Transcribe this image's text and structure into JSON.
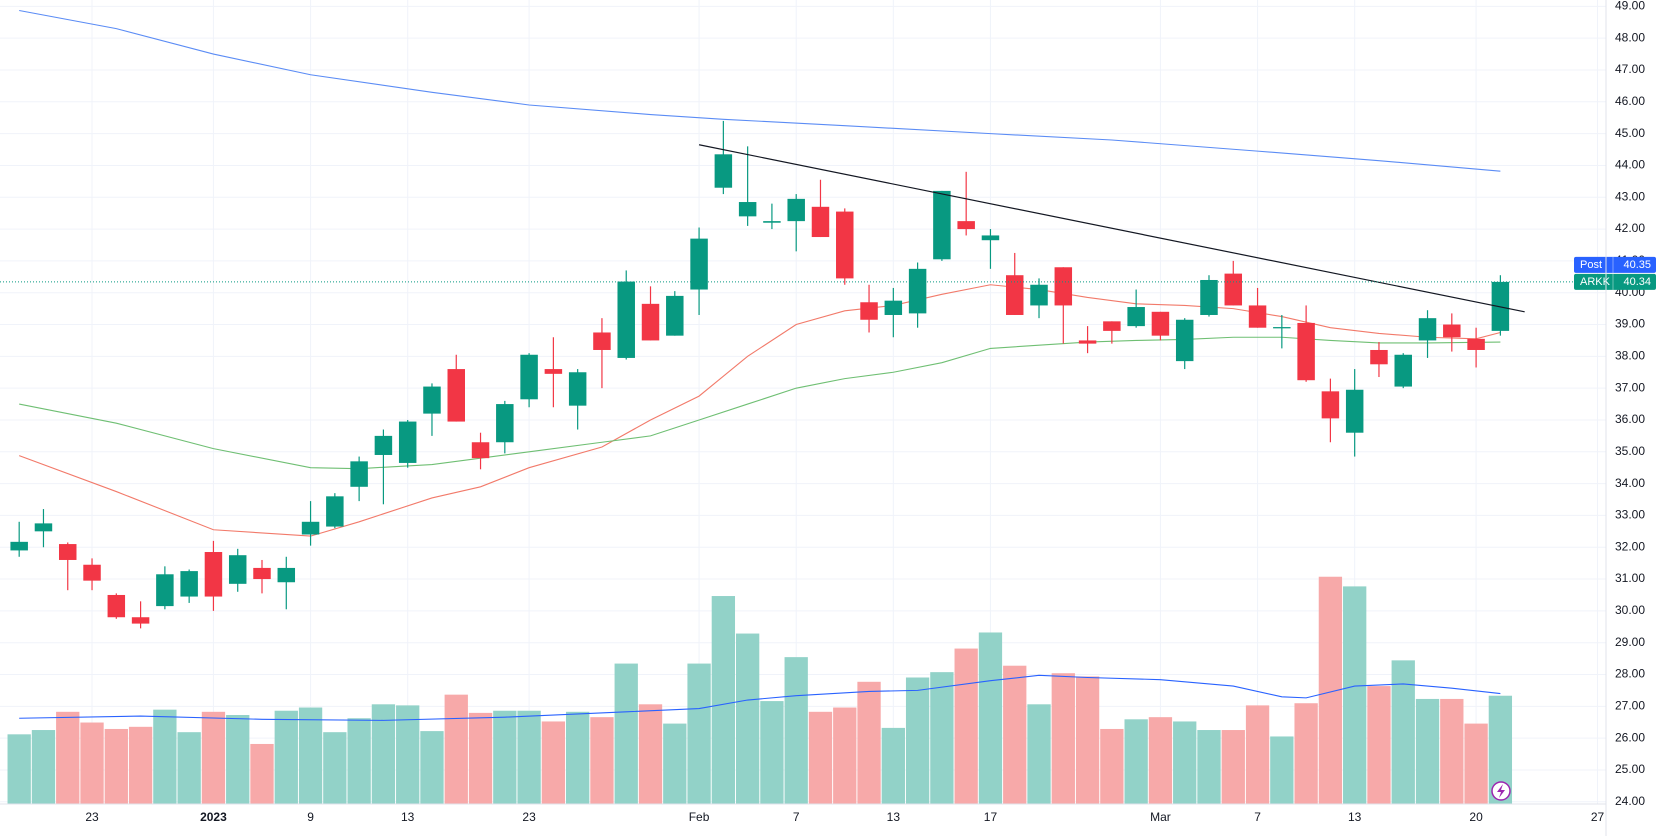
{
  "chart_data": {
    "type": "candlestick",
    "open": [
      31.9,
      32.5,
      32.1,
      31.45,
      30.5,
      29.8,
      30.15,
      30.45,
      31.85,
      30.85,
      31.35,
      30.9,
      32.4,
      32.65,
      33.9,
      34.9,
      34.65,
      36.2,
      37.6,
      35.3,
      35.3,
      36.65,
      37.6,
      36.45,
      38.75,
      37.95,
      39.65,
      38.65,
      40.1,
      43.3,
      42.4,
      42.2,
      42.25,
      42.7,
      42.55,
      39.7,
      39.3,
      39.35,
      41.05,
      42.25,
      41.65,
      40.55,
      39.6,
      40.8,
      38.5,
      39.1,
      38.95,
      39.4,
      37.85,
      39.3,
      40.6,
      39.6,
      38.88,
      39.05,
      36.9,
      35.6,
      38.2,
      37.05,
      38.5,
      39.0,
      38.55,
      38.8
    ],
    "high": [
      32.8,
      33.2,
      32.15,
      31.65,
      30.55,
      30.3,
      31.4,
      31.3,
      32.2,
      31.95,
      31.6,
      31.7,
      33.45,
      33.7,
      34.85,
      35.7,
      36.0,
      37.15,
      38.05,
      35.6,
      36.6,
      38.1,
      38.6,
      37.6,
      39.2,
      40.7,
      40.2,
      40.05,
      42.05,
      45.4,
      44.6,
      42.8,
      43.1,
      43.55,
      42.65,
      40.25,
      40.15,
      40.95,
      43.2,
      43.8,
      42.0,
      41.25,
      40.45,
      40.8,
      38.95,
      39.1,
      40.1,
      39.4,
      39.2,
      40.55,
      41.0,
      40.15,
      39.3,
      39.6,
      37.3,
      37.6,
      38.45,
      38.1,
      39.45,
      39.35,
      38.9,
      40.55
    ],
    "low": [
      31.7,
      32.0,
      30.65,
      30.65,
      29.75,
      29.45,
      30.05,
      30.25,
      30.0,
      30.6,
      30.55,
      30.05,
      32.05,
      32.6,
      33.45,
      33.35,
      34.5,
      35.5,
      35.95,
      34.45,
      34.95,
      36.4,
      36.4,
      35.7,
      37.0,
      37.9,
      38.5,
      38.65,
      39.3,
      43.1,
      42.1,
      42.0,
      41.3,
      41.75,
      40.25,
      38.75,
      38.6,
      38.9,
      41.0,
      41.8,
      40.75,
      39.3,
      39.2,
      38.4,
      38.1,
      38.4,
      38.9,
      38.5,
      37.6,
      39.25,
      39.6,
      38.9,
      38.25,
      37.2,
      35.3,
      34.85,
      37.35,
      37.0,
      37.95,
      38.15,
      37.65,
      38.65
    ],
    "close": [
      32.17,
      32.75,
      31.6,
      30.95,
      29.8,
      29.6,
      31.15,
      31.25,
      30.45,
      31.75,
      31.0,
      31.35,
      32.8,
      33.6,
      34.7,
      35.5,
      35.95,
      37.05,
      35.95,
      34.8,
      36.5,
      38.05,
      37.45,
      37.5,
      38.2,
      40.35,
      38.5,
      39.9,
      41.7,
      44.35,
      42.85,
      42.25,
      42.95,
      41.75,
      40.45,
      39.15,
      39.75,
      40.75,
      43.2,
      42.0,
      41.8,
      39.3,
      40.25,
      39.6,
      38.4,
      38.8,
      39.55,
      38.65,
      39.15,
      40.4,
      39.6,
      38.9,
      38.92,
      37.25,
      36.05,
      36.95,
      37.75,
      38.05,
      39.2,
      38.6,
      38.2,
      40.34
    ],
    "volume": [
      13,
      13.8,
      17.2,
      15.2,
      14,
      14.4,
      17.6,
      13.4,
      17.2,
      16.6,
      11.2,
      17.4,
      18,
      13.4,
      16,
      18.6,
      18.4,
      13.6,
      20.4,
      17,
      17.4,
      17.4,
      15.4,
      17.2,
      16.2,
      26.2,
      18.6,
      15,
      26.2,
      38.8,
      31.8,
      19.2,
      27.4,
      17.2,
      18,
      22.8,
      14.2,
      23.6,
      24.6,
      29,
      32,
      25.8,
      18.6,
      24.4,
      23.8,
      14,
      15.8,
      16.2,
      15.4,
      13.8,
      13.8,
      18.4,
      12.6,
      18.8,
      42.4,
      40.6,
      22,
      26.8,
      19.6,
      19.6,
      15,
      20.2
    ],
    "up_color": "#089981",
    "down_color": "#f23645",
    "volume_up_color": "#92d2c8",
    "volume_down_color": "#f7a9a9",
    "lines": [
      {
        "color": "#5b8cf5",
        "x": [
          0,
          4,
          8,
          12,
          17,
          21,
          26,
          29,
          34,
          40,
          45,
          51,
          56,
          61
        ],
        "values": [
          48.87,
          48.3,
          47.5,
          46.85,
          46.3,
          45.9,
          45.6,
          45.45,
          45.25,
          45.0,
          44.8,
          44.45,
          44.15,
          43.82
        ]
      },
      {
        "color": "#f27a6a",
        "x": [
          0,
          4,
          8,
          12,
          14,
          17,
          19,
          21,
          24,
          26,
          28,
          30,
          32,
          34,
          36,
          38,
          40,
          42,
          44,
          46,
          48,
          50,
          52,
          54,
          56,
          58,
          60,
          61
        ],
        "values": [
          34.88,
          33.75,
          32.55,
          32.35,
          32.8,
          33.55,
          33.9,
          34.5,
          35.15,
          36.0,
          36.75,
          38.0,
          39.0,
          39.43,
          39.6,
          39.95,
          40.25,
          40.1,
          39.85,
          39.65,
          39.6,
          39.5,
          39.25,
          38.9,
          38.72,
          38.6,
          38.55,
          38.75
        ]
      },
      {
        "color": "#6fbf73",
        "x": [
          0,
          4,
          8,
          12,
          14,
          17,
          21,
          24,
          26,
          28,
          30,
          32,
          34,
          36,
          38,
          40,
          42,
          44,
          46,
          48,
          50,
          52,
          54,
          56,
          58,
          61
        ],
        "values": [
          36.5,
          35.9,
          35.1,
          34.5,
          34.47,
          34.6,
          35.0,
          35.3,
          35.5,
          36.0,
          36.5,
          37.0,
          37.3,
          37.5,
          37.8,
          38.25,
          38.35,
          38.45,
          38.5,
          38.53,
          38.6,
          38.6,
          38.5,
          38.42,
          38.42,
          38.45
        ]
      },
      {
        "color": "#2962ff",
        "axis": "volume",
        "x": [
          0,
          5,
          10,
          15,
          20,
          25,
          28,
          30,
          32,
          35,
          37,
          40,
          42,
          44,
          47,
          50,
          52,
          53,
          55,
          57,
          59,
          61
        ],
        "values": [
          16,
          16.4,
          15.8,
          15.6,
          16.2,
          17.2,
          17.8,
          19.4,
          20.2,
          21,
          21.2,
          23,
          24,
          23.6,
          23.2,
          22,
          20,
          19.8,
          22,
          22.4,
          21.6,
          20.6
        ]
      }
    ],
    "trendline": {
      "color": "#131722",
      "x": [
        28,
        62
      ],
      "values": [
        44.65,
        39.4
      ]
    },
    "price_labels": [
      {
        "name": "Post",
        "value": 40.35,
        "color": "#2962ff"
      },
      {
        "name": "ARKK",
        "value": 40.34,
        "color": "#089981"
      }
    ],
    "xlim": [
      -0.79,
      65.35
    ],
    "ylim": [
      23.93,
      49.2
    ],
    "volume_lim": [
      0,
      150
    ],
    "grid": true,
    "yticks": [
      {
        "value": 24,
        "label": "24.00"
      },
      {
        "value": 25,
        "label": "25.00"
      },
      {
        "value": 26,
        "label": "26.00"
      },
      {
        "value": 27,
        "label": "27.00"
      },
      {
        "value": 28,
        "label": "28.00"
      },
      {
        "value": 29,
        "label": "29.00"
      },
      {
        "value": 30,
        "label": "30.00"
      },
      {
        "value": 31,
        "label": "31.00"
      },
      {
        "value": 32,
        "label": "32.00"
      },
      {
        "value": 33,
        "label": "33.00"
      },
      {
        "value": 34,
        "label": "34.00"
      },
      {
        "value": 35,
        "label": "35.00"
      },
      {
        "value": 36,
        "label": "36.00"
      },
      {
        "value": 37,
        "label": "37.00"
      },
      {
        "value": 38,
        "label": "38.00"
      },
      {
        "value": 39,
        "label": "39.00"
      },
      {
        "value": 40,
        "label": "40.00"
      },
      {
        "value": 41,
        "label": "41.00"
      },
      {
        "value": 42,
        "label": "42.00"
      },
      {
        "value": 43,
        "label": "43.00"
      },
      {
        "value": 44,
        "label": "44.00"
      },
      {
        "value": 45,
        "label": "45.00"
      },
      {
        "value": 46,
        "label": "46.00"
      },
      {
        "value": 47,
        "label": "47.00"
      },
      {
        "value": 48,
        "label": "48.00"
      },
      {
        "value": 49,
        "label": "49.00"
      }
    ],
    "xticks": [
      {
        "value": 3,
        "label": "23"
      },
      {
        "value": 8,
        "label": "2023"
      },
      {
        "value": 12,
        "label": "9"
      },
      {
        "value": 16,
        "label": "13"
      },
      {
        "value": 21,
        "label": "23"
      },
      {
        "value": 28,
        "label": "Feb"
      },
      {
        "value": 32,
        "label": "7"
      },
      {
        "value": 36,
        "label": "13"
      },
      {
        "value": 40,
        "label": "17"
      },
      {
        "value": 47,
        "label": "Mar"
      },
      {
        "value": 51,
        "label": "7"
      },
      {
        "value": 55,
        "label": "13"
      },
      {
        "value": 60,
        "label": "20"
      },
      {
        "value": 65,
        "label": "27"
      }
    ]
  }
}
